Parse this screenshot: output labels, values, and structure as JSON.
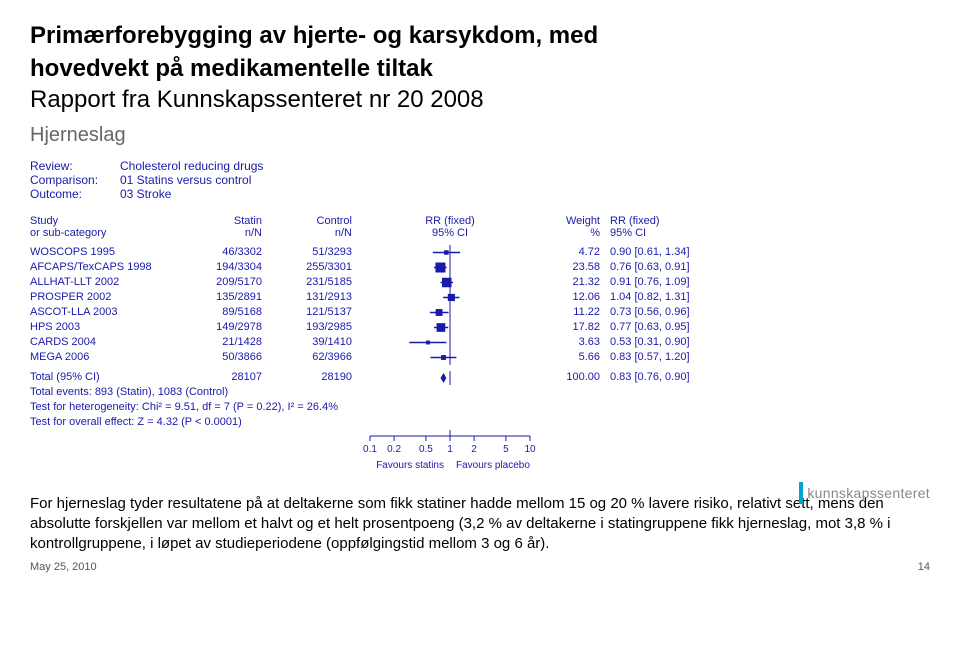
{
  "title_line1": "Primærforebygging av hjerte- og karsykdom, med",
  "title_line2": "hovedvekt på medikamentelle tiltak",
  "subtitle": "Rapport fra Kunnskapssenteret nr 20 2008",
  "section": "Hjerneslag",
  "meta": {
    "review_label": "Review:",
    "review_value": "Cholesterol reducing drugs",
    "comparison_label": "Comparison:",
    "comparison_value": "01 Statins versus control",
    "outcome_label": "Outcome:",
    "outcome_value": "03 Stroke"
  },
  "header": {
    "study_l1": "Study",
    "study_l2": "or sub-category",
    "statin_l1": "Statin",
    "statin_l2": "n/N",
    "control_l1": "Control",
    "control_l2": "n/N",
    "rr_l1": "RR (fixed)",
    "rr_l2": "95% CI",
    "weight_l1": "Weight",
    "weight_l2": "%",
    "rr2_l1": "RR (fixed)",
    "rr2_l2": "95% CI"
  },
  "plot": {
    "xmin_log": -1.0,
    "xmax_log": 1.0,
    "ticks": [
      0.1,
      0.2,
      0.5,
      1,
      2,
      5,
      10
    ],
    "favours_left": "Favours statins",
    "favours_right": "Favours placebo",
    "line_color": "#1a1aaa",
    "box_color": "#1a1aaa",
    "box_max_side": 10
  },
  "rows": [
    {
      "study": "WOSCOPS 1995",
      "statin": "46/3302",
      "control": "51/3293",
      "weight": "4.72",
      "rr": 0.9,
      "lo": 0.61,
      "hi": 1.34,
      "ci": "0.90 [0.61, 1.34]"
    },
    {
      "study": "AFCAPS/TexCAPS 1998",
      "statin": "194/3304",
      "control": "255/3301",
      "weight": "23.58",
      "rr": 0.76,
      "lo": 0.63,
      "hi": 0.91,
      "ci": "0.76 [0.63, 0.91]"
    },
    {
      "study": "ALLHAT-LLT 2002",
      "statin": "209/5170",
      "control": "231/5185",
      "weight": "21.32",
      "rr": 0.91,
      "lo": 0.76,
      "hi": 1.09,
      "ci": "0.91 [0.76, 1.09]"
    },
    {
      "study": "PROSPER 2002",
      "statin": "135/2891",
      "control": "131/2913",
      "weight": "12.06",
      "rr": 1.04,
      "lo": 0.82,
      "hi": 1.31,
      "ci": "1.04 [0.82, 1.31]"
    },
    {
      "study": "ASCOT-LLA 2003",
      "statin": "89/5168",
      "control": "121/5137",
      "weight": "11.22",
      "rr": 0.73,
      "lo": 0.56,
      "hi": 0.96,
      "ci": "0.73 [0.56, 0.96]"
    },
    {
      "study": "HPS 2003",
      "statin": "149/2978",
      "control": "193/2985",
      "weight": "17.82",
      "rr": 0.77,
      "lo": 0.63,
      "hi": 0.95,
      "ci": "0.77 [0.63, 0.95]"
    },
    {
      "study": "CARDS 2004",
      "statin": "21/1428",
      "control": "39/1410",
      "weight": "3.63",
      "rr": 0.53,
      "lo": 0.31,
      "hi": 0.9,
      "ci": "0.53 [0.31, 0.90]"
    },
    {
      "study": "MEGA 2006",
      "statin": "50/3866",
      "control": "62/3966",
      "weight": "5.66",
      "rr": 0.83,
      "lo": 0.57,
      "hi": 1.2,
      "ci": "0.83 [0.57, 1.20]"
    }
  ],
  "total": {
    "label": "Total (95% CI)",
    "statin_n": "28107",
    "control_n": "28190",
    "weight": "100.00",
    "rr": 0.83,
    "lo": 0.76,
    "hi": 0.9,
    "ci": "0.83 [0.76, 0.90]"
  },
  "footnotes": {
    "events": "Total events: 893 (Statin), 1083 (Control)",
    "het": "Test for heterogeneity: Chi² = 9.51, df = 7 (P = 0.22), I² = 26.4%",
    "overall": "Test for overall effect: Z = 4.32 (P < 0.0001)"
  },
  "bottom_paragraph": "For hjerneslag tyder resultatene på at deltakerne som fikk statiner hadde mellom 15 og 20 % lavere risiko, relativt sett, mens den absolutte forskjellen var mellom et halvt og et helt prosentpoeng (3,2 % av deltakerne i statingruppene fikk hjerneslag, mot 3,8 % i kontrollgruppene, i løpet av studieperiodene (oppfølgingstid mellom 3 og 6 år).",
  "footer": {
    "date": "May 25, 2010",
    "page": "14",
    "logo_text": "kunnskapssenteret"
  }
}
